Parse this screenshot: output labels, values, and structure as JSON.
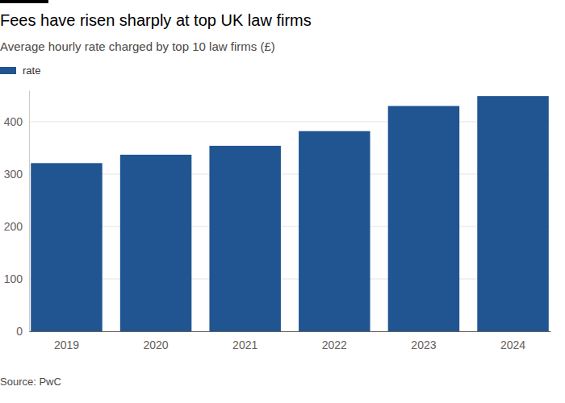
{
  "chart_data": {
    "type": "bar",
    "title": "Fees have risen sharply at top UK law firms",
    "subtitle": "Average hourly rate charged by top 10 law firms (£)",
    "source": "Source: PwC",
    "categories": [
      "2019",
      "2020",
      "2021",
      "2022",
      "2023",
      "2024"
    ],
    "series": [
      {
        "name": "rate",
        "color": "#205591",
        "values": [
          321,
          337,
          354,
          382,
          430,
          449
        ]
      }
    ],
    "ylim": [
      0,
      460
    ],
    "yticks": [
      0,
      100,
      200,
      300,
      400
    ],
    "grid": true,
    "legend": "top-left"
  }
}
